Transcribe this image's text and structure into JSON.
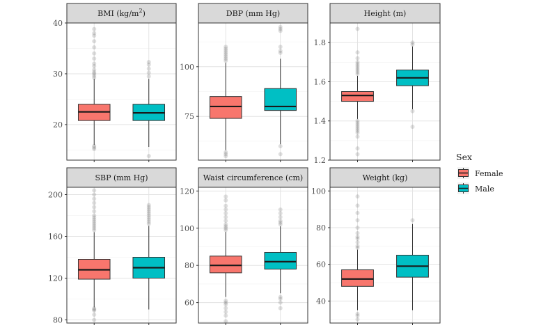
{
  "chart_data": {
    "type": "boxplot",
    "layout": "facet grid, 2 rows x 3 columns, free y scales",
    "groups": [
      "Female",
      "Male"
    ],
    "colors": {
      "Female": "#f8766d",
      "Male": "#00bfc4"
    },
    "legend": {
      "title": "Sex",
      "position": "right",
      "entries": [
        "Female",
        "Male"
      ]
    },
    "panels": [
      {
        "title_parts": [
          "BMI (kg/m",
          "2",
          ")"
        ],
        "ylim": [
          13,
          40
        ],
        "ticks": [
          20,
          30,
          40
        ],
        "boxes": [
          {
            "group": "Female",
            "q1": 20.8,
            "median": 22.5,
            "q3": 24.0,
            "whisker_low": 16.0,
            "whisker_high": 29.0,
            "outliers": [
              15.2,
              15.5,
              15.8,
              29.2,
              29.6,
              30.0,
              30.3,
              30.8,
              31.5,
              32.0,
              33.0,
              34.0,
              35.2,
              36.4,
              37.5,
              38.0,
              38.8
            ]
          },
          {
            "group": "Male",
            "q1": 20.8,
            "median": 22.3,
            "q3": 24.0,
            "whisker_low": 15.6,
            "whisker_high": 29.0,
            "outliers": [
              13.8,
              29.5,
              30.2,
              31.0,
              31.8,
              32.3
            ]
          }
        ]
      },
      {
        "title_parts": [
          "DBP (mm Hg)"
        ],
        "ylim": [
          53,
          122
        ],
        "ticks": [
          75,
          100
        ],
        "boxes": [
          {
            "group": "Female",
            "q1": 74,
            "median": 80,
            "q3": 85,
            "whisker_low": 58,
            "whisker_high": 102,
            "outliers": [
              55,
              56,
              57,
              103,
              104,
              105,
              106,
              107,
              108,
              109,
              110
            ]
          },
          {
            "group": "Male",
            "q1": 78,
            "median": 80,
            "q3": 89,
            "whisker_low": 61,
            "whisker_high": 104,
            "outliers": [
              56,
              60,
              107,
              108,
              110,
              118,
              119,
              120
            ]
          }
        ]
      },
      {
        "title_parts": [
          "Height (m)"
        ],
        "ylim": [
          1.2,
          1.9
        ],
        "ticks": [
          1.2,
          1.4,
          1.6,
          1.8
        ],
        "boxes": [
          {
            "group": "Female",
            "q1": 1.5,
            "median": 1.53,
            "q3": 1.55,
            "whisker_low": 1.41,
            "whisker_high": 1.63,
            "outliers": [
              1.23,
              1.26,
              1.32,
              1.34,
              1.35,
              1.36,
              1.37,
              1.38,
              1.39,
              1.4,
              1.64,
              1.65,
              1.66,
              1.67,
              1.68,
              1.69,
              1.7,
              1.72,
              1.75,
              1.87
            ]
          },
          {
            "group": "Male",
            "q1": 1.58,
            "median": 1.62,
            "q3": 1.66,
            "whisker_low": 1.46,
            "whisker_high": 1.78,
            "outliers": [
              1.37,
              1.45,
              1.79,
              1.8
            ]
          }
        ]
      },
      {
        "title_parts": [
          "SBP (mm Hg)"
        ],
        "ylim": [
          77,
          207
        ],
        "ticks": [
          80,
          120,
          160,
          200
        ],
        "boxes": [
          {
            "group": "Female",
            "q1": 119,
            "median": 128,
            "q3": 138,
            "whisker_low": 92,
            "whisker_high": 164,
            "outliers": [
              80,
              85,
              89,
              90,
              91,
              166,
              168,
              170,
              172,
              174,
              176,
              178,
              180,
              184,
              188,
              192,
              196,
              200,
              204
            ]
          },
          {
            "group": "Male",
            "q1": 120,
            "median": 130,
            "q3": 140,
            "whisker_low": 90,
            "whisker_high": 170,
            "outliers": [
              172,
              174,
              176,
              178,
              180,
              182,
              184,
              186,
              188,
              190
            ]
          }
        ]
      },
      {
        "title_parts": [
          "Waist circumference (cm)"
        ],
        "ylim": [
          49,
          122
        ],
        "ticks": [
          60,
          80,
          100,
          120
        ],
        "boxes": [
          {
            "group": "Female",
            "q1": 76,
            "median": 80,
            "q3": 85,
            "whisker_low": 63,
            "whisker_high": 98,
            "outliers": [
              50,
              53,
              55,
              57,
              59,
              60,
              61,
              99,
              100,
              101,
              102,
              104,
              106,
              108,
              110,
              112,
              115,
              117
            ]
          },
          {
            "group": "Male",
            "q1": 78,
            "median": 82,
            "q3": 87,
            "whisker_low": 65,
            "whisker_high": 101,
            "outliers": [
              57,
              60,
              62,
              63,
              102,
              103,
              104,
              106,
              108,
              110
            ]
          }
        ]
      },
      {
        "title_parts": [
          "Weight (kg)"
        ],
        "ylim": [
          28,
          102
        ],
        "ticks": [
          40,
          60,
          80,
          100
        ],
        "boxes": [
          {
            "group": "Female",
            "q1": 48,
            "median": 52,
            "q3": 57,
            "whisker_low": 35,
            "whisker_high": 68,
            "outliers": [
              30,
              32,
              33,
              69,
              70,
              72,
              74,
              75,
              77,
              80,
              84,
              88,
              92,
              97
            ]
          },
          {
            "group": "Male",
            "q1": 53,
            "median": 59,
            "q3": 65,
            "whisker_low": 35,
            "whisker_high": 82,
            "outliers": [
              84
            ]
          }
        ]
      }
    ]
  }
}
